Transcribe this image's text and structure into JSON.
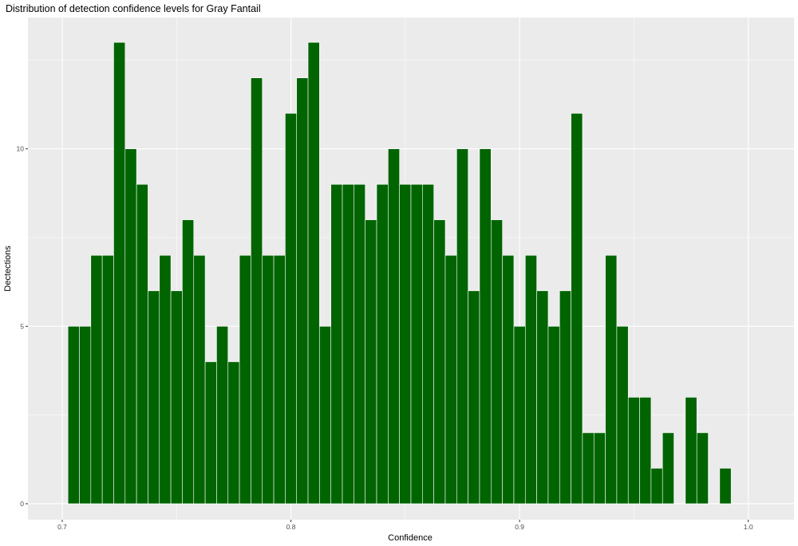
{
  "chart_data": {
    "type": "bar",
    "title": "Distribution of detection confidence levels for Gray Fantail",
    "xlabel": "Confidence",
    "ylabel": "Dectections",
    "xlim": [
      0.685,
      1.02
    ],
    "ylim": [
      -0.45,
      13.7
    ],
    "x_ticks": [
      0.7,
      0.8,
      0.9,
      1.0
    ],
    "x_tick_labels": [
      "0.7",
      "0.8",
      "0.9",
      "1.0"
    ],
    "y_ticks": [
      0,
      5,
      10
    ],
    "y_tick_labels": [
      "0",
      "5",
      "10"
    ],
    "bin_width": 0.005,
    "x": [
      0.705,
      0.71,
      0.715,
      0.72,
      0.725,
      0.73,
      0.735,
      0.74,
      0.745,
      0.75,
      0.755,
      0.76,
      0.765,
      0.77,
      0.775,
      0.78,
      0.785,
      0.79,
      0.795,
      0.8,
      0.805,
      0.81,
      0.815,
      0.82,
      0.825,
      0.83,
      0.835,
      0.84,
      0.845,
      0.85,
      0.855,
      0.86,
      0.865,
      0.87,
      0.875,
      0.88,
      0.885,
      0.89,
      0.895,
      0.9,
      0.905,
      0.91,
      0.915,
      0.92,
      0.925,
      0.93,
      0.935,
      0.94,
      0.945,
      0.95,
      0.955,
      0.96,
      0.965,
      0.97,
      0.975,
      0.98,
      0.985,
      0.99
    ],
    "values": [
      5,
      5,
      7,
      7,
      13,
      10,
      9,
      6,
      7,
      6,
      8,
      7,
      4,
      5,
      4,
      7,
      12,
      7,
      7,
      11,
      12,
      13,
      5,
      9,
      9,
      9,
      8,
      9,
      10,
      9,
      9,
      9,
      8,
      7,
      10,
      6,
      10,
      8,
      7,
      5,
      7,
      6,
      5,
      6,
      11,
      2,
      2,
      7,
      5,
      3,
      3,
      1,
      2,
      0,
      3,
      2,
      0,
      1
    ],
    "bar_color": "#006400",
    "panel_color": "#EBEBEB",
    "grid": true
  }
}
